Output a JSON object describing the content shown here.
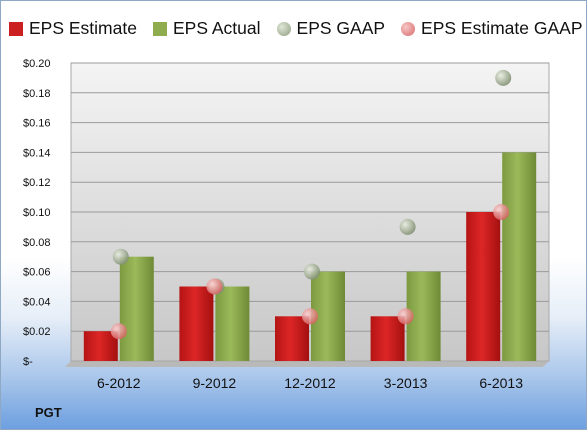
{
  "chart_data": {
    "type": "bar",
    "categories": [
      "6-2012",
      "9-2012",
      "12-2012",
      "3-2013",
      "6-2013"
    ],
    "series": [
      {
        "name": "EPS Estimate",
        "kind": "bar",
        "color": "#cc2020",
        "values": [
          0.02,
          0.05,
          0.03,
          0.03,
          0.1
        ]
      },
      {
        "name": "EPS Actual",
        "kind": "bar",
        "color": "#8fad4f",
        "values": [
          0.07,
          0.05,
          0.06,
          0.06,
          0.14
        ]
      },
      {
        "name": "EPS GAAP",
        "kind": "marker",
        "color": "#9aaa8a",
        "values": [
          0.07,
          0.05,
          0.06,
          0.09,
          0.19
        ]
      },
      {
        "name": "EPS Estimate GAAP",
        "kind": "marker",
        "color": "#e07a7a",
        "values": [
          0.02,
          0.05,
          0.03,
          0.03,
          0.1
        ]
      }
    ],
    "yticks": [
      "$-",
      "$0.02",
      "$0.04",
      "$0.06",
      "$0.08",
      "$0.10",
      "$0.12",
      "$0.14",
      "$0.16",
      "$0.18",
      "$0.20"
    ],
    "ylim": [
      0,
      0.2
    ],
    "grid": true,
    "legend_position": "top",
    "footer_label": "PGT"
  }
}
